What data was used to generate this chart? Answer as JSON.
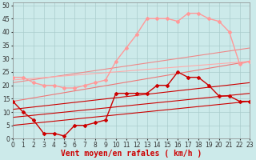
{
  "bg_color": "#cceaea",
  "grid_color": "#aacccc",
  "xlabel": "Vent moyen/en rafales ( km/h )",
  "x_ticks": [
    0,
    1,
    2,
    3,
    4,
    5,
    6,
    7,
    8,
    9,
    10,
    11,
    12,
    13,
    14,
    15,
    16,
    17,
    18,
    19,
    20,
    21,
    22,
    23
  ],
  "y_ticks": [
    0,
    5,
    10,
    15,
    20,
    25,
    30,
    35,
    40,
    45,
    50
  ],
  "xlim": [
    0,
    23
  ],
  "ylim": [
    0,
    51
  ],
  "series": [
    {
      "x": [
        0,
        1,
        2,
        3,
        4,
        5,
        6,
        7,
        8,
        9,
        10,
        11,
        12,
        13,
        14,
        15,
        16,
        17,
        18,
        19,
        20,
        21,
        22,
        23
      ],
      "y": [
        23,
        23,
        21,
        20,
        20,
        19,
        19,
        20,
        21,
        22,
        29,
        34,
        39,
        45,
        45,
        45,
        44,
        47,
        47,
        45,
        44,
        40,
        28,
        29
      ],
      "color": "#ff9999",
      "marker": "D",
      "markersize": 2,
      "linewidth": 1.0,
      "zorder": 3
    },
    {
      "x": [
        0,
        1,
        2,
        3,
        4,
        5,
        6,
        7,
        8,
        9,
        10,
        11,
        12,
        13,
        14,
        15,
        16,
        17,
        18,
        19,
        20,
        21,
        22,
        23
      ],
      "y": [
        14,
        10,
        7,
        2,
        2,
        1,
        5,
        5,
        6,
        7,
        17,
        17,
        17,
        17,
        20,
        20,
        25,
        23,
        23,
        20,
        16,
        16,
        14,
        14
      ],
      "color": "#cc0000",
      "marker": "D",
      "markersize": 2,
      "linewidth": 1.0,
      "zorder": 4
    },
    {
      "x": [
        0,
        23
      ],
      "y": [
        5,
        14
      ],
      "color": "#cc0000",
      "marker": null,
      "linewidth": 0.8,
      "zorder": 2
    },
    {
      "x": [
        0,
        23
      ],
      "y": [
        8,
        17
      ],
      "color": "#cc0000",
      "marker": null,
      "linewidth": 0.8,
      "zorder": 2
    },
    {
      "x": [
        0,
        23
      ],
      "y": [
        11,
        21
      ],
      "color": "#cc0000",
      "marker": null,
      "linewidth": 0.8,
      "zorder": 2
    },
    {
      "x": [
        0,
        23
      ],
      "y": [
        14,
        29
      ],
      "color": "#ee7777",
      "marker": null,
      "linewidth": 0.8,
      "zorder": 2
    },
    {
      "x": [
        0,
        23
      ],
      "y": [
        21,
        34
      ],
      "color": "#ee8888",
      "marker": null,
      "linewidth": 0.8,
      "zorder": 2
    },
    {
      "x": [
        0,
        23
      ],
      "y": [
        22,
        29
      ],
      "color": "#ffaaaa",
      "marker": null,
      "linewidth": 0.8,
      "zorder": 2
    }
  ],
  "arrow_color": "#cc0000",
  "fontsize_xlabel": 7,
  "fontsize_ticks": 5.5
}
